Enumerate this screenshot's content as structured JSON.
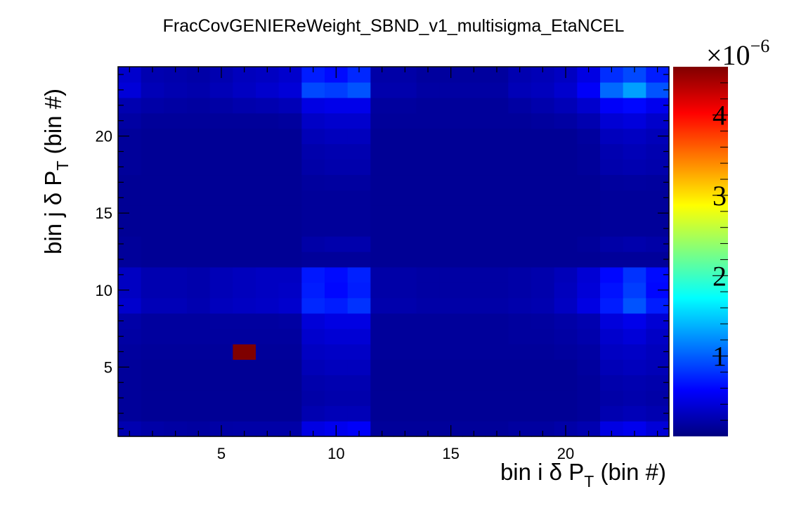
{
  "chart_data": {
    "type": "heatmap",
    "title": "FracCovGENIEReWeight_SBND_v1_multisigma_EtaNCEL",
    "xlabel": {
      "prefix": "bin i ",
      "symbol": "δ",
      "var": " P",
      "sub": "T",
      "suffix": " (bin #)"
    },
    "ylabel": {
      "prefix": "bin j ",
      "symbol": "δ",
      "var": " P",
      "sub": "T",
      "suffix": " (bin #)"
    },
    "xlim": [
      0.5,
      24.5
    ],
    "ylim": [
      0.5,
      24.5
    ],
    "x_ticks": [
      "5",
      "10",
      "15",
      "20"
    ],
    "y_ticks": [
      "5",
      "10",
      "15",
      "20"
    ],
    "n_bins": 24,
    "colorbar": {
      "min": 0,
      "max": 4.6,
      "ticks": [
        "1",
        "2",
        "3",
        "4"
      ],
      "exponent_base": "×10",
      "exponent_power": "−6",
      "palette": [
        "#00007f",
        "#0000ff",
        "#007fff",
        "#00ffff",
        "#7fff7f",
        "#ffff00",
        "#ff7f00",
        "#ff0000",
        "#7f0000"
      ]
    },
    "z_unit": 1e-06,
    "z_values": [
      [
        0.22,
        0.18,
        0.16,
        0.15,
        0.17,
        0.18,
        0.18,
        0.18,
        0.45,
        0.5,
        0.55,
        0.12,
        0.12,
        0.12,
        0.12,
        0.12,
        0.12,
        0.15,
        0.15,
        0.18,
        0.22,
        0.45,
        0.5,
        0.4
      ],
      [
        0.12,
        0.1,
        0.1,
        0.1,
        0.1,
        0.1,
        0.1,
        0.1,
        0.22,
        0.25,
        0.25,
        0.1,
        0.1,
        0.1,
        0.1,
        0.1,
        0.1,
        0.1,
        0.1,
        0.1,
        0.12,
        0.22,
        0.25,
        0.22
      ],
      [
        0.12,
        0.1,
        0.1,
        0.1,
        0.1,
        0.1,
        0.1,
        0.1,
        0.18,
        0.2,
        0.2,
        0.1,
        0.1,
        0.1,
        0.1,
        0.1,
        0.1,
        0.1,
        0.1,
        0.1,
        0.12,
        0.18,
        0.2,
        0.18
      ],
      [
        0.12,
        0.1,
        0.1,
        0.1,
        0.1,
        0.1,
        0.1,
        0.1,
        0.2,
        0.22,
        0.22,
        0.1,
        0.1,
        0.1,
        0.1,
        0.1,
        0.1,
        0.1,
        0.1,
        0.1,
        0.12,
        0.2,
        0.22,
        0.2
      ],
      [
        0.12,
        0.1,
        0.1,
        0.1,
        0.1,
        0.1,
        0.1,
        0.1,
        0.25,
        0.28,
        0.28,
        0.1,
        0.1,
        0.1,
        0.1,
        0.1,
        0.1,
        0.1,
        0.1,
        0.1,
        0.14,
        0.25,
        0.28,
        0.25
      ],
      [
        0.14,
        0.12,
        0.12,
        0.12,
        0.12,
        4.6,
        0.12,
        0.12,
        0.3,
        0.32,
        0.32,
        0.12,
        0.12,
        0.12,
        0.12,
        0.12,
        0.12,
        0.12,
        0.12,
        0.14,
        0.16,
        0.3,
        0.32,
        0.28
      ],
      [
        0.16,
        0.14,
        0.14,
        0.14,
        0.14,
        0.14,
        0.14,
        0.14,
        0.35,
        0.38,
        0.38,
        0.12,
        0.12,
        0.12,
        0.12,
        0.12,
        0.12,
        0.14,
        0.14,
        0.16,
        0.2,
        0.35,
        0.4,
        0.32
      ],
      [
        0.18,
        0.14,
        0.14,
        0.14,
        0.15,
        0.15,
        0.15,
        0.16,
        0.4,
        0.45,
        0.45,
        0.12,
        0.12,
        0.12,
        0.12,
        0.12,
        0.12,
        0.14,
        0.15,
        0.18,
        0.22,
        0.42,
        0.48,
        0.38
      ],
      [
        0.35,
        0.25,
        0.25,
        0.22,
        0.28,
        0.3,
        0.32,
        0.35,
        0.75,
        0.7,
        0.8,
        0.2,
        0.2,
        0.18,
        0.18,
        0.18,
        0.18,
        0.2,
        0.22,
        0.3,
        0.45,
        0.7,
        0.95,
        0.7
      ],
      [
        0.3,
        0.22,
        0.22,
        0.2,
        0.25,
        0.28,
        0.3,
        0.32,
        0.7,
        0.6,
        0.7,
        0.18,
        0.18,
        0.16,
        0.16,
        0.16,
        0.16,
        0.18,
        0.2,
        0.28,
        0.4,
        0.65,
        0.85,
        0.6
      ],
      [
        0.3,
        0.22,
        0.22,
        0.2,
        0.25,
        0.28,
        0.3,
        0.3,
        0.68,
        0.62,
        0.72,
        0.18,
        0.18,
        0.16,
        0.16,
        0.16,
        0.16,
        0.18,
        0.2,
        0.26,
        0.38,
        0.6,
        0.8,
        0.62
      ],
      [
        0.12,
        0.1,
        0.1,
        0.1,
        0.1,
        0.1,
        0.1,
        0.1,
        0.12,
        0.12,
        0.12,
        0.1,
        0.1,
        0.1,
        0.1,
        0.1,
        0.1,
        0.1,
        0.1,
        0.1,
        0.1,
        0.12,
        0.12,
        0.12
      ],
      [
        0.12,
        0.1,
        0.1,
        0.1,
        0.1,
        0.1,
        0.1,
        0.1,
        0.18,
        0.2,
        0.2,
        0.1,
        0.1,
        0.1,
        0.1,
        0.1,
        0.1,
        0.1,
        0.1,
        0.1,
        0.12,
        0.18,
        0.2,
        0.18
      ],
      [
        0.1,
        0.1,
        0.1,
        0.1,
        0.1,
        0.1,
        0.1,
        0.1,
        0.12,
        0.12,
        0.12,
        0.1,
        0.1,
        0.1,
        0.1,
        0.1,
        0.1,
        0.1,
        0.1,
        0.1,
        0.1,
        0.12,
        0.12,
        0.12
      ],
      [
        0.1,
        0.1,
        0.1,
        0.1,
        0.1,
        0.1,
        0.1,
        0.1,
        0.12,
        0.12,
        0.12,
        0.1,
        0.1,
        0.1,
        0.1,
        0.1,
        0.1,
        0.1,
        0.1,
        0.1,
        0.1,
        0.12,
        0.12,
        0.12
      ],
      [
        0.1,
        0.1,
        0.1,
        0.1,
        0.1,
        0.1,
        0.1,
        0.1,
        0.12,
        0.12,
        0.12,
        0.1,
        0.1,
        0.1,
        0.1,
        0.1,
        0.1,
        0.1,
        0.1,
        0.1,
        0.1,
        0.12,
        0.12,
        0.12
      ],
      [
        0.1,
        0.1,
        0.1,
        0.1,
        0.1,
        0.1,
        0.1,
        0.1,
        0.14,
        0.15,
        0.15,
        0.1,
        0.1,
        0.1,
        0.1,
        0.1,
        0.1,
        0.1,
        0.1,
        0.1,
        0.1,
        0.14,
        0.15,
        0.14
      ],
      [
        0.12,
        0.1,
        0.1,
        0.1,
        0.1,
        0.1,
        0.1,
        0.1,
        0.18,
        0.2,
        0.2,
        0.1,
        0.1,
        0.1,
        0.1,
        0.1,
        0.1,
        0.1,
        0.1,
        0.1,
        0.12,
        0.2,
        0.22,
        0.2
      ],
      [
        0.12,
        0.1,
        0.1,
        0.1,
        0.1,
        0.1,
        0.1,
        0.1,
        0.2,
        0.22,
        0.22,
        0.1,
        0.1,
        0.1,
        0.1,
        0.1,
        0.1,
        0.1,
        0.1,
        0.1,
        0.12,
        0.22,
        0.25,
        0.22
      ],
      [
        0.12,
        0.1,
        0.1,
        0.1,
        0.1,
        0.1,
        0.1,
        0.1,
        0.25,
        0.28,
        0.28,
        0.1,
        0.1,
        0.1,
        0.1,
        0.1,
        0.1,
        0.1,
        0.1,
        0.1,
        0.14,
        0.28,
        0.3,
        0.26
      ],
      [
        0.16,
        0.12,
        0.12,
        0.12,
        0.12,
        0.12,
        0.12,
        0.14,
        0.32,
        0.35,
        0.35,
        0.12,
        0.12,
        0.12,
        0.12,
        0.12,
        0.12,
        0.12,
        0.14,
        0.16,
        0.22,
        0.38,
        0.42,
        0.34
      ],
      [
        0.22,
        0.18,
        0.16,
        0.15,
        0.17,
        0.2,
        0.22,
        0.25,
        0.45,
        0.48,
        0.48,
        0.14,
        0.14,
        0.12,
        0.12,
        0.12,
        0.12,
        0.16,
        0.2,
        0.25,
        0.35,
        0.55,
        0.6,
        0.5
      ],
      [
        0.4,
        0.25,
        0.22,
        0.2,
        0.25,
        0.3,
        0.35,
        0.4,
        0.9,
        0.85,
        0.95,
        0.2,
        0.2,
        0.16,
        0.16,
        0.16,
        0.16,
        0.25,
        0.28,
        0.35,
        0.55,
        1.05,
        1.3,
        0.95
      ],
      [
        0.35,
        0.22,
        0.2,
        0.18,
        0.22,
        0.28,
        0.3,
        0.35,
        0.7,
        0.62,
        0.75,
        0.18,
        0.18,
        0.14,
        0.14,
        0.14,
        0.14,
        0.22,
        0.25,
        0.3,
        0.45,
        0.78,
        0.9,
        0.7
      ]
    ]
  }
}
